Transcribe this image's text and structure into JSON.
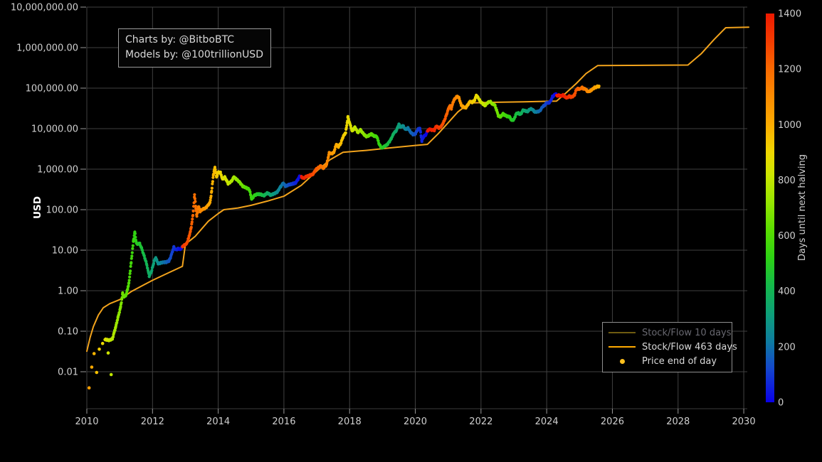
{
  "credits": {
    "line1": "Charts by: @BitboBTC",
    "line2": "Models by: @100trillionUSD"
  },
  "axes": {
    "y_label": "USD",
    "y_tick_labels": [
      "10,000,000.00",
      "1,000,000.00",
      "100,000.00",
      "10,000.00",
      "1,000.00",
      "100.00",
      "10.00",
      "1.00",
      "0.10",
      "0.01"
    ],
    "x_tick_labels": [
      "2010",
      "2012",
      "2014",
      "2016",
      "2018",
      "2020",
      "2022",
      "2024",
      "2026",
      "2028",
      "2030"
    ]
  },
  "colorbar": {
    "title": "Days until next halving",
    "tick_labels": [
      "1400",
      "1200",
      "1000",
      "800",
      "600",
      "400",
      "200",
      "0"
    ],
    "range": [
      0,
      1400
    ]
  },
  "legend": {
    "items": [
      {
        "label": "Stock/Flow 10 days",
        "type": "line",
        "dimmed": true,
        "color": "#6f5c10"
      },
      {
        "label": "Stock/Flow 463 days",
        "type": "line",
        "dimmed": false,
        "color": "#ffaa00"
      },
      {
        "label": "Price end of day",
        "type": "dot",
        "dimmed": false,
        "color": "#ffc01e"
      }
    ]
  },
  "colors": {
    "background": "#000000",
    "grid": "#414141",
    "tick_text": "#cfcfcf",
    "axis_label_text": "#ffffff",
    "model_line": "#f2a31c",
    "tick_mark": "#999999"
  },
  "chart_data": {
    "type": "scatter",
    "title": "",
    "xlabel": "",
    "ylabel": "USD",
    "x_range_years": [
      2010,
      2030.2
    ],
    "y_log_range_usd": [
      0.01,
      10000000
    ],
    "grid": true,
    "legend_position": "inside lower right",
    "halving_dates_years": [
      2012.91,
      2016.53,
      2020.37,
      2024.3,
      2028.3
    ],
    "colormap_days_stops": [
      [
        0,
        "#0a00e8"
      ],
      [
        120,
        "#1446cd"
      ],
      [
        220,
        "#0e7da0"
      ],
      [
        320,
        "#0da078"
      ],
      [
        420,
        "#14b94b"
      ],
      [
        520,
        "#2dd214"
      ],
      [
        620,
        "#5ade00"
      ],
      [
        720,
        "#96e600"
      ],
      [
        820,
        "#cde600"
      ],
      [
        900,
        "#f0d700"
      ],
      [
        1000,
        "#fdac00"
      ],
      [
        1100,
        "#fc8c00"
      ],
      [
        1200,
        "#fa6900"
      ],
      [
        1300,
        "#f53c00"
      ],
      [
        1400,
        "#ee1900"
      ]
    ],
    "early_scatter_points": [
      [
        2010.07,
        0.004
      ],
      [
        2010.15,
        0.013
      ],
      [
        2010.22,
        0.028
      ],
      [
        2010.3,
        0.0096
      ],
      [
        2010.38,
        0.036
      ],
      [
        2010.48,
        0.05
      ],
      [
        2010.65,
        0.029
      ],
      [
        2010.74,
        0.0085
      ]
    ],
    "price_end_of_day": [
      [
        2010.55,
        0.062
      ],
      [
        2010.68,
        0.06
      ],
      [
        2010.78,
        0.065
      ],
      [
        2010.87,
        0.12
      ],
      [
        2010.95,
        0.22
      ],
      [
        2011.03,
        0.4
      ],
      [
        2011.09,
        0.85
      ],
      [
        2011.14,
        0.7
      ],
      [
        2011.2,
        0.8
      ],
      [
        2011.28,
        1.5
      ],
      [
        2011.35,
        5
      ],
      [
        2011.42,
        17
      ],
      [
        2011.46,
        29
      ],
      [
        2011.5,
        16
      ],
      [
        2011.54,
        14
      ],
      [
        2011.6,
        15
      ],
      [
        2011.67,
        11
      ],
      [
        2011.75,
        7
      ],
      [
        2011.82,
        4.6
      ],
      [
        2011.9,
        2.3
      ],
      [
        2011.97,
        3
      ],
      [
        2012.05,
        5.4
      ],
      [
        2012.1,
        6.5
      ],
      [
        2012.17,
        4.7
      ],
      [
        2012.25,
        4.9
      ],
      [
        2012.33,
        5
      ],
      [
        2012.42,
        5.1
      ],
      [
        2012.5,
        5.4
      ],
      [
        2012.55,
        6.7
      ],
      [
        2012.6,
        9
      ],
      [
        2012.65,
        11.8
      ],
      [
        2012.7,
        10.2
      ],
      [
        2012.78,
        10.9
      ],
      [
        2012.85,
        10.5
      ],
      [
        2012.91,
        12.2
      ],
      [
        2012.97,
        13.4
      ],
      [
        2013.04,
        14.5
      ],
      [
        2013.1,
        20
      ],
      [
        2013.17,
        33
      ],
      [
        2013.23,
        72
      ],
      [
        2013.28,
        230
      ],
      [
        2013.32,
        110
      ],
      [
        2013.35,
        68
      ],
      [
        2013.4,
        122
      ],
      [
        2013.45,
        91
      ],
      [
        2013.52,
        102
      ],
      [
        2013.6,
        108
      ],
      [
        2013.68,
        126
      ],
      [
        2013.75,
        150
      ],
      [
        2013.8,
        280
      ],
      [
        2013.85,
        700
      ],
      [
        2013.9,
        1120
      ],
      [
        2013.95,
        640
      ],
      [
        2014.0,
        840
      ],
      [
        2014.07,
        810
      ],
      [
        2014.13,
        560
      ],
      [
        2014.2,
        640
      ],
      [
        2014.3,
        445
      ],
      [
        2014.4,
        500
      ],
      [
        2014.48,
        640
      ],
      [
        2014.55,
        570
      ],
      [
        2014.65,
        480
      ],
      [
        2014.75,
        375
      ],
      [
        2014.85,
        350
      ],
      [
        2014.95,
        310
      ],
      [
        2015.02,
        180
      ],
      [
        2015.1,
        225
      ],
      [
        2015.2,
        245
      ],
      [
        2015.3,
        235
      ],
      [
        2015.4,
        222
      ],
      [
        2015.5,
        260
      ],
      [
        2015.6,
        228
      ],
      [
        2015.7,
        250
      ],
      [
        2015.8,
        275
      ],
      [
        2015.9,
        370
      ],
      [
        2015.98,
        450
      ],
      [
        2016.05,
        385
      ],
      [
        2016.15,
        415
      ],
      [
        2016.25,
        435
      ],
      [
        2016.35,
        455
      ],
      [
        2016.42,
        545
      ],
      [
        2016.48,
        670
      ],
      [
        2016.53,
        640
      ],
      [
        2016.6,
        600
      ],
      [
        2016.68,
        655
      ],
      [
        2016.78,
        710
      ],
      [
        2016.88,
        740
      ],
      [
        2016.97,
        970
      ],
      [
        2017.05,
        1080
      ],
      [
        2017.12,
        1210
      ],
      [
        2017.2,
        1060
      ],
      [
        2017.3,
        1290
      ],
      [
        2017.38,
        2550
      ],
      [
        2017.45,
        2400
      ],
      [
        2017.52,
        2600
      ],
      [
        2017.6,
        4200
      ],
      [
        2017.65,
        3500
      ],
      [
        2017.73,
        4300
      ],
      [
        2017.8,
        6300
      ],
      [
        2017.88,
        8000
      ],
      [
        2017.95,
        19200
      ],
      [
        2018.0,
        14000
      ],
      [
        2018.08,
        8500
      ],
      [
        2018.16,
        11000
      ],
      [
        2018.25,
        8000
      ],
      [
        2018.33,
        9300
      ],
      [
        2018.42,
        7500
      ],
      [
        2018.5,
        6400
      ],
      [
        2018.58,
        6700
      ],
      [
        2018.67,
        7400
      ],
      [
        2018.75,
        6500
      ],
      [
        2018.83,
        6400
      ],
      [
        2018.9,
        4100
      ],
      [
        2018.98,
        3300
      ],
      [
        2019.06,
        3700
      ],
      [
        2019.14,
        4000
      ],
      [
        2019.25,
        5300
      ],
      [
        2019.35,
        7900
      ],
      [
        2019.42,
        8800
      ],
      [
        2019.5,
        12800
      ],
      [
        2019.56,
        10800
      ],
      [
        2019.62,
        11900
      ],
      [
        2019.7,
        9600
      ],
      [
        2019.78,
        10300
      ],
      [
        2019.85,
        8300
      ],
      [
        2019.93,
        7300
      ],
      [
        2020.0,
        7300
      ],
      [
        2020.07,
        9500
      ],
      [
        2020.14,
        10200
      ],
      [
        2020.2,
        5000
      ],
      [
        2020.26,
        6500
      ],
      [
        2020.32,
        7000
      ],
      [
        2020.37,
        8800
      ],
      [
        2020.44,
        9800
      ],
      [
        2020.5,
        9200
      ],
      [
        2020.58,
        9150
      ],
      [
        2020.64,
        11600
      ],
      [
        2020.72,
        10400
      ],
      [
        2020.8,
        11600
      ],
      [
        2020.88,
        15500
      ],
      [
        2020.95,
        22000
      ],
      [
        2021.0,
        29500
      ],
      [
        2021.05,
        37000
      ],
      [
        2021.1,
        31500
      ],
      [
        2021.16,
        48000
      ],
      [
        2021.22,
        57000
      ],
      [
        2021.28,
        62500
      ],
      [
        2021.33,
        58000
      ],
      [
        2021.4,
        37500
      ],
      [
        2021.47,
        34000
      ],
      [
        2021.53,
        32500
      ],
      [
        2021.6,
        39000
      ],
      [
        2021.67,
        47500
      ],
      [
        2021.73,
        44500
      ],
      [
        2021.8,
        49000
      ],
      [
        2021.86,
        66500
      ],
      [
        2021.92,
        57000
      ],
      [
        2021.98,
        47000
      ],
      [
        2022.05,
        41500
      ],
      [
        2022.12,
        37000
      ],
      [
        2022.2,
        44000
      ],
      [
        2022.28,
        46500
      ],
      [
        2022.35,
        40500
      ],
      [
        2022.42,
        38500
      ],
      [
        2022.47,
        29500
      ],
      [
        2022.53,
        20500
      ],
      [
        2022.6,
        19500
      ],
      [
        2022.67,
        23500
      ],
      [
        2022.73,
        21500
      ],
      [
        2022.8,
        20000
      ],
      [
        2022.87,
        19500
      ],
      [
        2022.93,
        16200
      ],
      [
        2023.0,
        16600
      ],
      [
        2023.07,
        23000
      ],
      [
        2023.13,
        24500
      ],
      [
        2023.2,
        22200
      ],
      [
        2023.28,
        28500
      ],
      [
        2023.35,
        27500
      ],
      [
        2023.42,
        26500
      ],
      [
        2023.5,
        30500
      ],
      [
        2023.57,
        29800
      ],
      [
        2023.64,
        25800
      ],
      [
        2023.72,
        26500
      ],
      [
        2023.8,
        27800
      ],
      [
        2023.87,
        34500
      ],
      [
        2023.94,
        38000
      ],
      [
        2024.0,
        43500
      ],
      [
        2024.06,
        42800
      ],
      [
        2024.12,
        48000
      ],
      [
        2024.18,
        62000
      ],
      [
        2024.24,
        68500
      ],
      [
        2024.28,
        73000
      ],
      [
        2024.31,
        64000
      ],
      [
        2024.37,
        66000
      ],
      [
        2024.43,
        64500
      ],
      [
        2024.5,
        67500
      ],
      [
        2024.56,
        60500
      ],
      [
        2024.62,
        57000
      ],
      [
        2024.68,
        64000
      ],
      [
        2024.74,
        60000
      ],
      [
        2024.8,
        62500
      ],
      [
        2024.85,
        69000
      ],
      [
        2024.9,
        91000
      ],
      [
        2024.96,
        98000
      ],
      [
        2025.02,
        94000
      ],
      [
        2025.07,
        104500
      ],
      [
        2025.12,
        97000
      ],
      [
        2025.18,
        96500
      ],
      [
        2025.23,
        84500
      ],
      [
        2025.28,
        82500
      ],
      [
        2025.34,
        87000
      ],
      [
        2025.4,
        95000
      ],
      [
        2025.46,
        103500
      ],
      [
        2025.52,
        107000
      ],
      [
        2025.56,
        111000
      ],
      [
        2025.6,
        108000
      ]
    ],
    "stock_flow_463d_model": [
      [
        2010.0,
        0.032
      ],
      [
        2010.1,
        0.07
      ],
      [
        2010.2,
        0.13
      ],
      [
        2010.35,
        0.25
      ],
      [
        2010.5,
        0.38
      ],
      [
        2010.7,
        0.48
      ],
      [
        2011.0,
        0.6
      ],
      [
        2011.35,
        0.95
      ],
      [
        2011.7,
        1.35
      ],
      [
        2012.0,
        1.8
      ],
      [
        2012.5,
        2.8
      ],
      [
        2012.91,
        4.0
      ],
      [
        2013.0,
        14
      ],
      [
        2013.3,
        22
      ],
      [
        2013.7,
        52
      ],
      [
        2014.0,
        80
      ],
      [
        2014.17,
        100
      ],
      [
        2014.6,
        110
      ],
      [
        2015.0,
        128
      ],
      [
        2015.5,
        163
      ],
      [
        2016.0,
        215
      ],
      [
        2016.53,
        400
      ],
      [
        2017.0,
        900
      ],
      [
        2017.4,
        1700
      ],
      [
        2017.8,
        2600
      ],
      [
        2018.5,
        2900
      ],
      [
        2019.3,
        3400
      ],
      [
        2020.0,
        3850
      ],
      [
        2020.37,
        4100
      ],
      [
        2020.7,
        7500
      ],
      [
        2021.0,
        14000
      ],
      [
        2021.3,
        26000
      ],
      [
        2021.65,
        43000
      ],
      [
        2022.3,
        44500
      ],
      [
        2023.3,
        46000
      ],
      [
        2024.3,
        48000
      ],
      [
        2024.6,
        78000
      ],
      [
        2024.9,
        130000
      ],
      [
        2025.2,
        230000
      ],
      [
        2025.55,
        360000
      ],
      [
        2026.5,
        364000
      ],
      [
        2027.4,
        367000
      ],
      [
        2028.3,
        372000
      ],
      [
        2028.7,
        700000
      ],
      [
        2029.1,
        1600000
      ],
      [
        2029.45,
        3100000
      ],
      [
        2030.15,
        3200000
      ]
    ],
    "stock_flow_10d_visible": false
  }
}
